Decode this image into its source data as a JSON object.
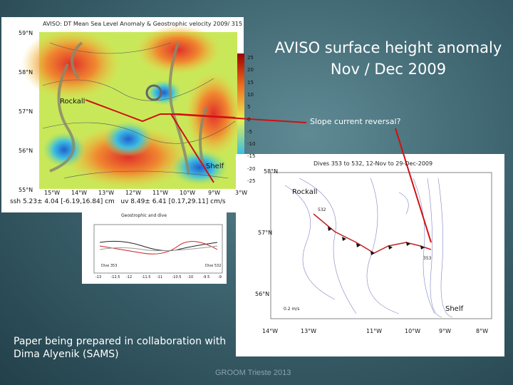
{
  "slide": {
    "title": "AVISO surface height anomaly Nov / Dec 2009",
    "callout": "Slope current reversal?",
    "note": "Paper being prepared in collaboration with Dima Alyenik (SAMS)",
    "footer": "GROOM Trieste 2013"
  },
  "left_map": {
    "title": "AVISO: DT Mean Sea Level Anomaly & Geostrophic velocity 2009/ 315",
    "lat_labels": [
      "59°N",
      "58°N",
      "57°N",
      "56°N",
      "55°N"
    ],
    "lon_labels": [
      "15°W",
      "14°W",
      "13°W",
      "12°W",
      "11°W",
      "10°W",
      "9°W",
      "3°W"
    ],
    "colorbar_labels": [
      "25",
      "20",
      "15",
      "10",
      "5",
      "0",
      "-5",
      "-10",
      "-15",
      "-20",
      "-25"
    ],
    "stats": "ssh 5.23± 4.04 [-6.19,16.84] cm   uv 8.49± 6.41 [0.17,29.11] cm/s",
    "rockall": "Rockall",
    "shelf": "Shelf"
  },
  "inset_plot": {
    "title": "Geostrophic and dive",
    "x_labels": [
      "-13",
      "-12.5",
      "-12",
      "-11.5",
      "-11",
      "-10.5",
      "-10",
      "-9.5",
      "-9"
    ],
    "start_label": "Dive 353",
    "end_label": "Dive 532"
  },
  "right_map": {
    "title": "Dives 353 to 532, 12-Nov to 29-Dec-2009",
    "lat_labels": [
      "58°N",
      "57°N",
      "56°N"
    ],
    "lon_labels": [
      "14°W",
      "13°W",
      "11°W",
      "10°W",
      "9°W",
      "8°W"
    ],
    "scale": "0.2 m/s",
    "start_dive": "532",
    "end_dive": "353",
    "rockall": "Rockall",
    "shelf": "Shelf"
  }
}
